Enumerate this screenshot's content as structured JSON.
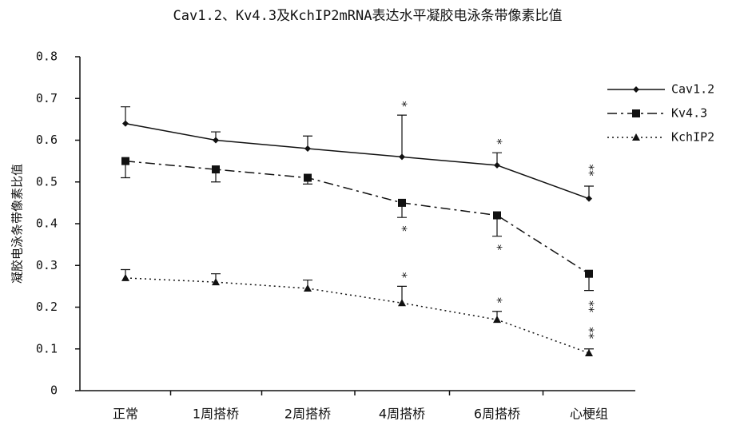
{
  "chart_data": {
    "type": "line",
    "title": "Cav1.2、Kv4.3及KchIP2mRNA表达水平凝胶电泳条带像素比值",
    "y_label": "凝胶电泳条带像素比值",
    "categories": [
      "正常",
      "1周搭桥",
      "2周搭桥",
      "4周搭桥",
      "6周搭桥",
      "心梗组"
    ],
    "ylim": [
      0,
      0.8
    ],
    "yticks": [
      {
        "value": 0,
        "label": "0"
      },
      0.1,
      0.2,
      0.3,
      0.4,
      0.5,
      0.6,
      0.7,
      0.8
    ],
    "legend": "upper right",
    "series": [
      {
        "name": "Cav1.2",
        "color": "#111111",
        "dash": "solid",
        "marker": "diamond",
        "error_direction": "up",
        "values": [
          0.64,
          0.6,
          0.58,
          0.56,
          0.54,
          0.46
        ],
        "errors": [
          0.04,
          0.02,
          0.03,
          0.1,
          0.03,
          0.03
        ],
        "significance": [
          null,
          null,
          null,
          "*",
          "*",
          "**"
        ]
      },
      {
        "name": "Kv4.3",
        "color": "#111111",
        "dash": "dashdot",
        "marker": "square",
        "error_direction": "down",
        "values": [
          0.55,
          0.53,
          0.51,
          0.45,
          0.42,
          0.28
        ],
        "errors": [
          0.04,
          0.03,
          0.015,
          0.035,
          0.05,
          0.04
        ],
        "significance": [
          null,
          null,
          null,
          "*",
          "*",
          "**"
        ]
      },
      {
        "name": "KchIP2",
        "color": "#111111",
        "dash": "dotted",
        "marker": "triangle",
        "error_direction": "up",
        "values": [
          0.27,
          0.26,
          0.245,
          0.21,
          0.17,
          0.09
        ],
        "errors": [
          0.02,
          0.02,
          0.02,
          0.04,
          0.02,
          0.01
        ],
        "significance": [
          null,
          null,
          null,
          "*",
          "*",
          "**"
        ]
      }
    ]
  }
}
